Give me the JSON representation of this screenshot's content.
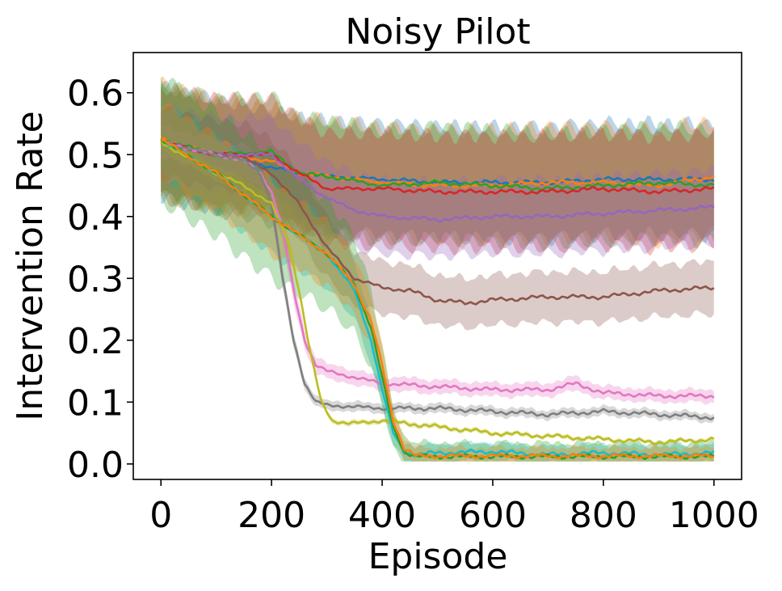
{
  "chart_data": {
    "type": "line",
    "title": "Noisy Pilot",
    "xlabel": "Episode",
    "ylabel": "Intervention Rate",
    "xlim": [
      -50,
      1050
    ],
    "ylim": [
      -0.025,
      0.665
    ],
    "xticks": [
      0,
      200,
      400,
      600,
      800,
      1000
    ],
    "xtick_labels": [
      "0",
      "200",
      "400",
      "600",
      "800",
      "1000"
    ],
    "yticks": [
      0.0,
      0.1,
      0.2,
      0.3,
      0.4,
      0.5,
      0.6
    ],
    "ytick_labels": [
      "0.0",
      "0.1",
      "0.2",
      "0.3",
      "0.4",
      "0.5",
      "0.6"
    ],
    "grid": false,
    "legend": "none",
    "band_opacity": 0.3,
    "series": [
      {
        "color": "#1f77b4",
        "x": [
          0,
          100,
          200,
          250,
          300,
          400,
          500,
          600,
          700,
          800,
          900,
          1000
        ],
        "y": [
          0.52,
          0.5,
          0.48,
          0.47,
          0.465,
          0.46,
          0.455,
          0.455,
          0.455,
          0.46,
          0.46,
          0.46
        ],
        "band": 0.09
      },
      {
        "color": "#ff7f0e",
        "x": [
          0,
          100,
          200,
          250,
          300,
          400,
          500,
          600,
          700,
          800,
          900,
          1000
        ],
        "y": [
          0.525,
          0.5,
          0.49,
          0.47,
          0.465,
          0.455,
          0.45,
          0.45,
          0.455,
          0.455,
          0.45,
          0.465
        ],
        "band": 0.09
      },
      {
        "color": "#2ca02c",
        "x": [
          0,
          100,
          200,
          250,
          300,
          400,
          500,
          600,
          700,
          800,
          900,
          1000
        ],
        "y": [
          0.525,
          0.5,
          0.505,
          0.47,
          0.465,
          0.45,
          0.455,
          0.45,
          0.445,
          0.45,
          0.455,
          0.45
        ],
        "band": 0.09
      },
      {
        "color": "#d62728",
        "x": [
          0,
          100,
          200,
          250,
          300,
          400,
          500,
          600,
          700,
          800,
          900,
          1000
        ],
        "y": [
          0.52,
          0.5,
          0.5,
          0.47,
          0.445,
          0.445,
          0.44,
          0.44,
          0.44,
          0.445,
          0.44,
          0.445
        ],
        "band": 0.09
      },
      {
        "color": "#9467bd",
        "x": [
          0,
          100,
          200,
          250,
          300,
          350,
          400,
          500,
          600,
          700,
          800,
          900,
          1000
        ],
        "y": [
          0.52,
          0.5,
          0.5,
          0.46,
          0.43,
          0.41,
          0.4,
          0.395,
          0.4,
          0.4,
          0.405,
          0.41,
          0.415
        ],
        "band": 0.06
      },
      {
        "color": "#8c564b",
        "x": [
          0,
          100,
          150,
          200,
          250,
          300,
          350,
          400,
          450,
          500,
          550,
          600,
          700,
          800,
          900,
          1000
        ],
        "y": [
          0.52,
          0.5,
          0.495,
          0.47,
          0.42,
          0.35,
          0.3,
          0.285,
          0.28,
          0.265,
          0.26,
          0.265,
          0.27,
          0.27,
          0.28,
          0.285
        ],
        "band": 0.055
      },
      {
        "color": "#e377c2",
        "x": [
          0,
          100,
          150,
          180,
          200,
          220,
          240,
          260,
          280,
          300,
          350,
          400,
          500,
          600,
          700,
          750,
          800,
          900,
          1000
        ],
        "y": [
          0.52,
          0.5,
          0.49,
          0.47,
          0.44,
          0.38,
          0.28,
          0.2,
          0.16,
          0.15,
          0.14,
          0.13,
          0.125,
          0.12,
          0.12,
          0.13,
          0.115,
          0.11,
          0.11
        ],
        "band": 0.025
      },
      {
        "color": "#7f7f7f",
        "x": [
          0,
          100,
          150,
          180,
          200,
          220,
          240,
          260,
          280,
          300,
          400,
          500,
          600,
          700,
          800,
          900,
          1000
        ],
        "y": [
          0.52,
          0.5,
          0.49,
          0.47,
          0.42,
          0.3,
          0.2,
          0.13,
          0.1,
          0.095,
          0.09,
          0.09,
          0.085,
          0.08,
          0.085,
          0.08,
          0.075
        ],
        "band": 0.02
      },
      {
        "color": "#bcbd22",
        "x": [
          0,
          100,
          150,
          200,
          230,
          250,
          270,
          290,
          310,
          340,
          400,
          450,
          500,
          600,
          700,
          800,
          900,
          1000
        ],
        "y": [
          0.52,
          0.47,
          0.45,
          0.42,
          0.36,
          0.28,
          0.18,
          0.1,
          0.07,
          0.065,
          0.07,
          0.065,
          0.06,
          0.05,
          0.045,
          0.04,
          0.035,
          0.04
        ],
        "band": 0.012
      },
      {
        "color": "#17becf",
        "x": [
          0,
          100,
          200,
          250,
          300,
          350,
          380,
          400,
          420,
          440,
          460,
          500,
          600,
          700,
          800,
          900,
          1000
        ],
        "y": [
          0.525,
          0.47,
          0.4,
          0.37,
          0.34,
          0.28,
          0.2,
          0.12,
          0.05,
          0.02,
          0.015,
          0.018,
          0.02,
          0.015,
          0.018,
          0.015,
          0.018
        ],
        "band": 0.06
      },
      {
        "color": "#2ca02c",
        "x": [
          0,
          100,
          200,
          250,
          300,
          350,
          380,
          400,
          420,
          440,
          460,
          500,
          600,
          700,
          800,
          900,
          1000
        ],
        "y": [
          0.525,
          0.47,
          0.4,
          0.37,
          0.34,
          0.29,
          0.22,
          0.14,
          0.06,
          0.02,
          0.012,
          0.012,
          0.012,
          0.012,
          0.012,
          0.012,
          0.012
        ],
        "band": 0.1
      },
      {
        "color": "#ff7f0e",
        "x": [
          0,
          100,
          200,
          250,
          300,
          350,
          380,
          400,
          420,
          440,
          460,
          500,
          600,
          700,
          800,
          900,
          1000
        ],
        "y": [
          0.525,
          0.47,
          0.4,
          0.37,
          0.34,
          0.29,
          0.23,
          0.16,
          0.07,
          0.025,
          0.013,
          0.013,
          0.013,
          0.013,
          0.013,
          0.013,
          0.013
        ],
        "band": 0.06
      }
    ]
  }
}
